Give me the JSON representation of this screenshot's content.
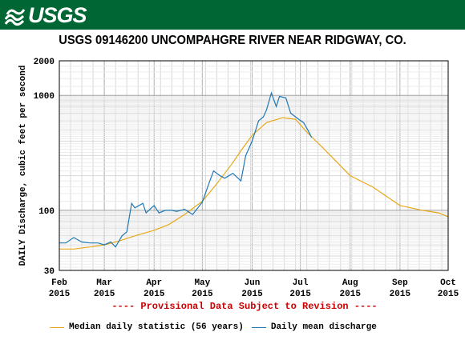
{
  "header": {
    "logo_text": "USGS",
    "title": "USGS 09146200 UNCOMPAHGRE RIVER NEAR RIDGWAY, CO.",
    "notice": "---- Provisional Data Subject to Revision ----"
  },
  "colors": {
    "banner": "#006633",
    "median": "#e6a817",
    "discharge": "#1f77b4",
    "notice": "#cc0000"
  },
  "chart_data": {
    "type": "line",
    "title": "USGS 09146200 UNCOMPAHGRE RIVER NEAR RIDGWAY, CO.",
    "xlabel": "",
    "ylabel": "DAILY Discharge, cubic feet per second",
    "yscale": "log",
    "ylim": [
      30,
      2000
    ],
    "xlim": [
      "2015-02-01",
      "2015-10-01"
    ],
    "grid": true,
    "legend_position": "bottom",
    "x_ticks": [
      {
        "line1": "Feb",
        "line2": "2015",
        "date": "2015-02-01"
      },
      {
        "line1": "Mar",
        "line2": "2015",
        "date": "2015-03-01"
      },
      {
        "line1": "Apr",
        "line2": "2015",
        "date": "2015-04-01"
      },
      {
        "line1": "May",
        "line2": "2015",
        "date": "2015-05-01"
      },
      {
        "line1": "Jun",
        "line2": "2015",
        "date": "2015-06-01"
      },
      {
        "line1": "Jul",
        "line2": "2015",
        "date": "2015-07-01"
      },
      {
        "line1": "Aug",
        "line2": "2015",
        "date": "2015-08-01"
      },
      {
        "line1": "Sep",
        "line2": "2015",
        "date": "2015-09-01"
      },
      {
        "line1": "Oct",
        "line2": "2015",
        "date": "2015-10-01"
      }
    ],
    "y_ticks": [
      30,
      100,
      1000,
      2000
    ],
    "series": [
      {
        "name": "Median daily statistic (56 years)",
        "points": [
          [
            "2015-02-01",
            46
          ],
          [
            "2015-02-10",
            46
          ],
          [
            "2015-02-20",
            48
          ],
          [
            "2015-03-01",
            50
          ],
          [
            "2015-03-10",
            54
          ],
          [
            "2015-03-20",
            60
          ],
          [
            "2015-04-01",
            67
          ],
          [
            "2015-04-10",
            75
          ],
          [
            "2015-04-20",
            92
          ],
          [
            "2015-05-01",
            120
          ],
          [
            "2015-05-10",
            170
          ],
          [
            "2015-05-20",
            260
          ],
          [
            "2015-05-25",
            330
          ],
          [
            "2015-06-01",
            450
          ],
          [
            "2015-06-10",
            580
          ],
          [
            "2015-06-20",
            640
          ],
          [
            "2015-06-28",
            620
          ],
          [
            "2015-07-05",
            480
          ],
          [
            "2015-07-15",
            350
          ],
          [
            "2015-08-01",
            200
          ],
          [
            "2015-08-15",
            160
          ],
          [
            "2015-09-01",
            110
          ],
          [
            "2015-09-15",
            100
          ],
          [
            "2015-09-25",
            95
          ],
          [
            "2015-10-01",
            88
          ]
        ]
      },
      {
        "name": "Daily mean discharge",
        "points": [
          [
            "2015-02-01",
            52
          ],
          [
            "2015-02-05",
            52
          ],
          [
            "2015-02-10",
            58
          ],
          [
            "2015-02-15",
            53
          ],
          [
            "2015-02-20",
            52
          ],
          [
            "2015-02-25",
            52
          ],
          [
            "2015-03-01",
            50
          ],
          [
            "2015-03-05",
            53
          ],
          [
            "2015-03-08",
            48
          ],
          [
            "2015-03-12",
            60
          ],
          [
            "2015-03-15",
            65
          ],
          [
            "2015-03-18",
            115
          ],
          [
            "2015-03-20",
            105
          ],
          [
            "2015-03-25",
            115
          ],
          [
            "2015-03-27",
            95
          ],
          [
            "2015-04-01",
            110
          ],
          [
            "2015-04-04",
            95
          ],
          [
            "2015-04-08",
            100
          ],
          [
            "2015-04-12",
            100
          ],
          [
            "2015-04-15",
            98
          ],
          [
            "2015-04-20",
            102
          ],
          [
            "2015-04-25",
            92
          ],
          [
            "2015-05-01",
            118
          ],
          [
            "2015-05-05",
            170
          ],
          [
            "2015-05-08",
            220
          ],
          [
            "2015-05-12",
            200
          ],
          [
            "2015-05-15",
            190
          ],
          [
            "2015-05-20",
            210
          ],
          [
            "2015-05-25",
            180
          ],
          [
            "2015-05-28",
            300
          ],
          [
            "2015-06-01",
            400
          ],
          [
            "2015-06-05",
            600
          ],
          [
            "2015-06-08",
            650
          ],
          [
            "2015-06-10",
            750
          ],
          [
            "2015-06-13",
            1050
          ],
          [
            "2015-06-16",
            800
          ],
          [
            "2015-06-18",
            980
          ],
          [
            "2015-06-22",
            950
          ],
          [
            "2015-06-25",
            700
          ],
          [
            "2015-06-30",
            620
          ],
          [
            "2015-07-03",
            580
          ],
          [
            "2015-07-06",
            490
          ],
          [
            "2015-07-08",
            430
          ]
        ]
      }
    ]
  }
}
